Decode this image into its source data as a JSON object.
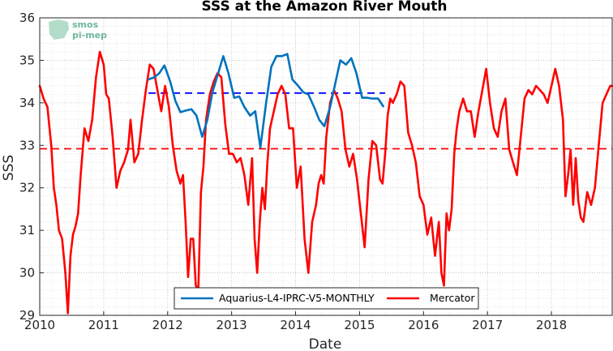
{
  "chart_data": {
    "type": "line",
    "title": "SSS at the Amazon River Mouth",
    "xlabel": "Date",
    "ylabel": "SSS",
    "xlim": [
      2010.0,
      2018.95
    ],
    "ylim": [
      29,
      36
    ],
    "x_ticks": [
      2010,
      2011,
      2012,
      2013,
      2014,
      2015,
      2016,
      2017,
      2018
    ],
    "y_ticks": [
      29,
      30,
      31,
      32,
      33,
      34,
      35,
      36
    ],
    "grid": true,
    "legend_position": "bottom-center",
    "watermark": [
      "smos",
      "pi-mep"
    ],
    "series": [
      {
        "name": "Aquarius-L4-IPRC-V5-MONTHLY",
        "color": "#0072bd",
        "mean": 34.23,
        "mean_xrange": [
          2011.7,
          2015.4
        ],
        "x": [
          2011.7,
          2011.79,
          2011.87,
          2011.95,
          2012.04,
          2012.12,
          2012.2,
          2012.29,
          2012.37,
          2012.45,
          2012.54,
          2012.62,
          2012.7,
          2012.79,
          2012.87,
          2012.95,
          2013.04,
          2013.12,
          2013.2,
          2013.29,
          2013.37,
          2013.45,
          2013.54,
          2013.62,
          2013.7,
          2013.79,
          2013.87,
          2013.95,
          2014.04,
          2014.12,
          2014.2,
          2014.29,
          2014.37,
          2014.45,
          2014.54,
          2014.62,
          2014.7,
          2014.79,
          2014.87,
          2014.95,
          2015.04,
          2015.12,
          2015.2,
          2015.29,
          2015.37
        ],
        "y": [
          34.55,
          34.6,
          34.7,
          34.88,
          34.5,
          34.05,
          33.78,
          33.82,
          33.85,
          33.7,
          33.2,
          33.6,
          34.25,
          34.7,
          35.1,
          34.7,
          34.12,
          34.15,
          33.9,
          33.7,
          33.8,
          32.95,
          34.0,
          34.85,
          35.1,
          35.1,
          35.15,
          34.55,
          34.4,
          34.25,
          34.2,
          33.9,
          33.6,
          33.45,
          33.9,
          34.45,
          35.0,
          34.9,
          35.05,
          34.7,
          34.12,
          34.12,
          34.1,
          34.1,
          33.92
        ]
      },
      {
        "name": "Mercator",
        "color": "#ff0000",
        "mean": 32.92,
        "mean_xrange": [
          2010.0,
          2018.95
        ],
        "x": [
          2010.0,
          2010.06,
          2010.12,
          2010.18,
          2010.22,
          2010.26,
          2010.3,
          2010.35,
          2010.4,
          2010.44,
          2010.48,
          2010.52,
          2010.56,
          2010.6,
          2010.64,
          2010.7,
          2010.76,
          2010.82,
          2010.88,
          2010.94,
          2011.0,
          2011.04,
          2011.08,
          2011.14,
          2011.2,
          2011.26,
          2011.32,
          2011.38,
          2011.42,
          2011.48,
          2011.54,
          2011.6,
          2011.66,
          2011.72,
          2011.78,
          2011.84,
          2011.9,
          2011.96,
          2012.02,
          2012.08,
          2012.14,
          2012.2,
          2012.24,
          2012.28,
          2012.32,
          2012.36,
          2012.4,
          2012.44,
          2012.48,
          2012.52,
          2012.56,
          2012.6,
          2012.66,
          2012.72,
          2012.78,
          2012.84,
          2012.9,
          2012.96,
          2013.02,
          2013.08,
          2013.14,
          2013.2,
          2013.26,
          2013.32,
          2013.36,
          2013.4,
          2013.44,
          2013.48,
          2013.52,
          2013.56,
          2013.6,
          2013.66,
          2013.72,
          2013.78,
          2013.84,
          2013.9,
          2013.96,
          2014.02,
          2014.08,
          2014.14,
          2014.2,
          2014.26,
          2014.32,
          2014.36,
          2014.4,
          2014.44,
          2014.48,
          2014.54,
          2014.6,
          2014.66,
          2014.72,
          2014.78,
          2014.84,
          2014.9,
          2014.96,
          2015.02,
          2015.08,
          2015.14,
          2015.2,
          2015.26,
          2015.32,
          2015.36,
          2015.4,
          2015.44,
          2015.48,
          2015.52,
          2015.58,
          2015.64,
          2015.7,
          2015.76,
          2015.82,
          2015.88,
          2015.94,
          2016.0,
          2016.06,
          2016.12,
          2016.18,
          2016.24,
          2016.28,
          2016.32,
          2016.36,
          2016.4,
          2016.44,
          2016.48,
          2016.52,
          2016.56,
          2016.62,
          2016.68,
          2016.74,
          2016.8,
          2016.86,
          2016.92,
          2016.98,
          2017.04,
          2017.1,
          2017.16,
          2017.22,
          2017.28,
          2017.34,
          2017.4,
          2017.46,
          2017.52,
          2017.58,
          2017.64,
          2017.7,
          2017.76,
          2017.82,
          2017.88,
          2017.94,
          2018.0,
          2018.06,
          2018.12,
          2018.18,
          2018.22,
          2018.26,
          2018.3,
          2018.34,
          2018.38,
          2018.42,
          2018.46,
          2018.5,
          2018.56,
          2018.62,
          2018.68,
          2018.74,
          2018.8,
          2018.86,
          2018.92,
          2018.95
        ],
        "y": [
          34.4,
          34.1,
          33.9,
          33.0,
          32.0,
          31.6,
          31.0,
          30.8,
          30.0,
          29.05,
          30.4,
          30.9,
          31.1,
          31.4,
          32.3,
          33.4,
          33.1,
          33.6,
          34.6,
          35.2,
          34.9,
          34.2,
          34.1,
          33.2,
          32.0,
          32.4,
          32.6,
          32.9,
          33.6,
          32.6,
          32.8,
          33.6,
          34.3,
          34.9,
          34.8,
          34.3,
          33.8,
          34.4,
          33.9,
          33.0,
          32.4,
          32.1,
          32.3,
          31.2,
          29.9,
          30.8,
          30.8,
          29.7,
          29.6,
          31.9,
          32.5,
          33.6,
          34.2,
          34.5,
          34.7,
          34.6,
          33.5,
          32.8,
          32.8,
          32.6,
          32.7,
          32.3,
          31.6,
          32.7,
          30.8,
          30.0,
          31.2,
          32.0,
          31.5,
          32.6,
          33.4,
          33.8,
          34.2,
          34.4,
          34.2,
          33.4,
          33.4,
          32.0,
          32.5,
          30.8,
          30.0,
          31.2,
          31.6,
          32.1,
          32.3,
          32.1,
          33.2,
          34.0,
          34.3,
          34.1,
          33.8,
          32.9,
          32.5,
          32.8,
          32.2,
          31.4,
          30.6,
          32.2,
          33.1,
          33.0,
          32.2,
          32.1,
          32.8,
          33.7,
          34.1,
          34.0,
          34.2,
          34.5,
          34.4,
          33.3,
          33.0,
          32.6,
          31.8,
          31.6,
          30.9,
          31.3,
          30.4,
          31.2,
          30.0,
          29.7,
          31.4,
          31.0,
          31.5,
          32.8,
          33.4,
          33.8,
          34.1,
          33.8,
          33.8,
          33.2,
          33.8,
          34.3,
          34.8,
          34.0,
          33.4,
          33.2,
          33.8,
          34.1,
          32.9,
          32.6,
          32.3,
          33.2,
          34.1,
          34.3,
          34.2,
          34.4,
          34.3,
          34.2,
          34.0,
          34.4,
          34.8,
          34.4,
          33.6,
          31.8,
          32.3,
          32.9,
          31.6,
          32.7,
          31.7,
          31.3,
          31.2,
          31.9,
          31.6,
          32.0,
          33.0,
          34.0,
          34.2,
          34.4,
          34.4
        ]
      }
    ]
  }
}
